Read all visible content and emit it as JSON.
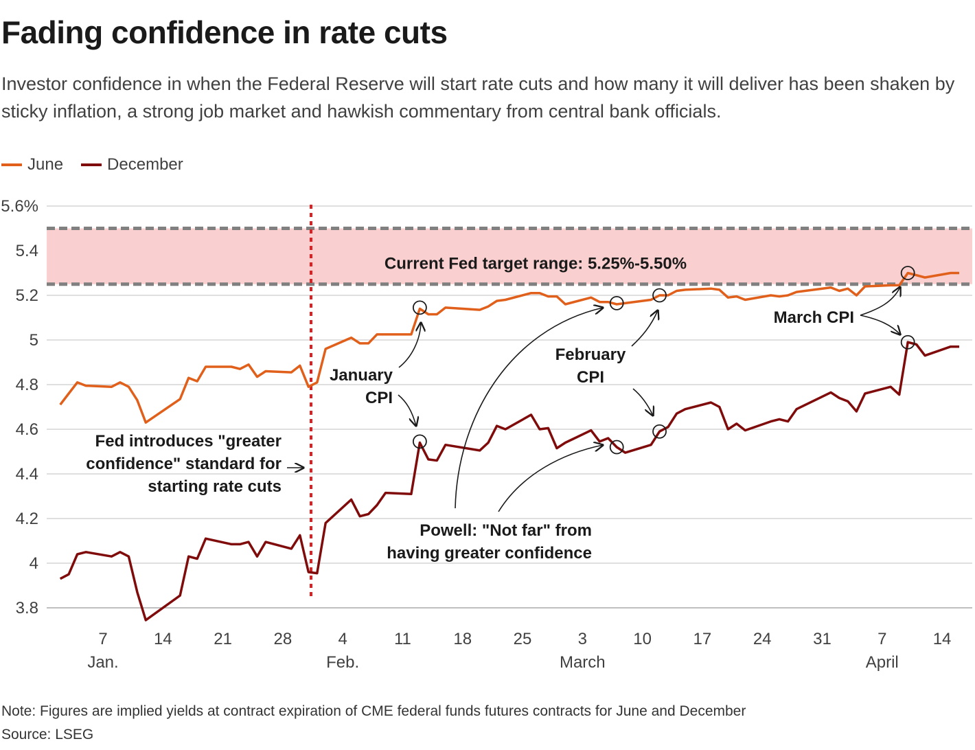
{
  "title": "Fading confidence in rate cuts",
  "subtitle": "Investor confidence in when the Federal Reserve will start rate cuts and how many it will deliver has been shaken by sticky inflation, a strong job market and hawkish commentary from central bank officials.",
  "note": "Note: Figures are implied yields at contract expiration of CME federal funds futures contracts for June and December",
  "source": "Source: LSEG",
  "colors": {
    "june": "#e0601b",
    "december": "#7f0b0b",
    "band": "#f9d0cf",
    "band_edge": "#808080",
    "vline": "#e02020",
    "grid": "#cccccc"
  },
  "chart_data": {
    "type": "line",
    "x_unit": "date 2024",
    "ylim": [
      3.7,
      5.6
    ],
    "yticks": [
      3.8,
      4,
      4.2,
      4.4,
      4.6,
      4.8,
      5,
      5.2,
      5.4,
      5.6
    ],
    "ytick_labels": [
      "3.8",
      "4",
      "4.2",
      "4.4",
      "4.6",
      "4.8",
      "5",
      "5.2",
      "5.4",
      "5.6%"
    ],
    "xticks": [
      {
        "date": "2024-01-07",
        "label": "7",
        "month": "Jan."
      },
      {
        "date": "2024-01-14",
        "label": "14",
        "month": ""
      },
      {
        "date": "2024-01-21",
        "label": "21",
        "month": ""
      },
      {
        "date": "2024-01-28",
        "label": "28",
        "month": ""
      },
      {
        "date": "2024-02-04",
        "label": "4",
        "month": "Feb."
      },
      {
        "date": "2024-02-11",
        "label": "11",
        "month": ""
      },
      {
        "date": "2024-02-18",
        "label": "18",
        "month": ""
      },
      {
        "date": "2024-02-25",
        "label": "25",
        "month": ""
      },
      {
        "date": "2024-03-03",
        "label": "3",
        "month": "March"
      },
      {
        "date": "2024-03-10",
        "label": "10",
        "month": ""
      },
      {
        "date": "2024-03-17",
        "label": "17",
        "month": ""
      },
      {
        "date": "2024-03-24",
        "label": "24",
        "month": ""
      },
      {
        "date": "2024-03-31",
        "label": "31",
        "month": ""
      },
      {
        "date": "2024-04-07",
        "label": "7",
        "month": "April"
      },
      {
        "date": "2024-04-14",
        "label": "14",
        "month": ""
      }
    ],
    "band": {
      "low": 5.25,
      "high": 5.5,
      "label": "Current Fed target range: 5.25%-5.50%"
    },
    "event_line": {
      "date": "2024-01-31"
    },
    "series": [
      {
        "name": "June",
        "points": [
          [
            "2024-01-02",
            4.71
          ],
          [
            "2024-01-03",
            4.76
          ],
          [
            "2024-01-04",
            4.81
          ],
          [
            "2024-01-05",
            4.795
          ],
          [
            "2024-01-08",
            4.79
          ],
          [
            "2024-01-09",
            4.81
          ],
          [
            "2024-01-10",
            4.79
          ],
          [
            "2024-01-11",
            4.73
          ],
          [
            "2024-01-12",
            4.63
          ],
          [
            "2024-01-16",
            4.735
          ],
          [
            "2024-01-17",
            4.83
          ],
          [
            "2024-01-18",
            4.815
          ],
          [
            "2024-01-19",
            4.88
          ],
          [
            "2024-01-22",
            4.88
          ],
          [
            "2024-01-23",
            4.87
          ],
          [
            "2024-01-24",
            4.89
          ],
          [
            "2024-01-25",
            4.835
          ],
          [
            "2024-01-26",
            4.86
          ],
          [
            "2024-01-29",
            4.855
          ],
          [
            "2024-01-30",
            4.885
          ],
          [
            "2024-01-31",
            4.79
          ],
          [
            "2024-02-01",
            4.81
          ],
          [
            "2024-02-02",
            4.96
          ],
          [
            "2024-02-05",
            5.01
          ],
          [
            "2024-02-06",
            4.985
          ],
          [
            "2024-02-07",
            4.985
          ],
          [
            "2024-02-08",
            5.025
          ],
          [
            "2024-02-09",
            5.025
          ],
          [
            "2024-02-12",
            5.025
          ],
          [
            "2024-02-13",
            5.14
          ],
          [
            "2024-02-14",
            5.115
          ],
          [
            "2024-02-15",
            5.115
          ],
          [
            "2024-02-16",
            5.145
          ],
          [
            "2024-02-20",
            5.135
          ],
          [
            "2024-02-21",
            5.15
          ],
          [
            "2024-02-22",
            5.175
          ],
          [
            "2024-02-23",
            5.18
          ],
          [
            "2024-02-26",
            5.21
          ],
          [
            "2024-02-27",
            5.21
          ],
          [
            "2024-02-28",
            5.195
          ],
          [
            "2024-02-29",
            5.195
          ],
          [
            "2024-03-01",
            5.16
          ],
          [
            "2024-03-04",
            5.19
          ],
          [
            "2024-03-05",
            5.17
          ],
          [
            "2024-03-06",
            5.17
          ],
          [
            "2024-03-07",
            5.16
          ],
          [
            "2024-03-08",
            5.165
          ],
          [
            "2024-03-11",
            5.18
          ],
          [
            "2024-03-12",
            5.2
          ],
          [
            "2024-03-13",
            5.2
          ],
          [
            "2024-03-14",
            5.22
          ],
          [
            "2024-03-15",
            5.225
          ],
          [
            "2024-03-18",
            5.23
          ],
          [
            "2024-03-19",
            5.225
          ],
          [
            "2024-03-20",
            5.19
          ],
          [
            "2024-03-21",
            5.195
          ],
          [
            "2024-03-22",
            5.18
          ],
          [
            "2024-03-25",
            5.2
          ],
          [
            "2024-03-26",
            5.195
          ],
          [
            "2024-03-27",
            5.2
          ],
          [
            "2024-03-28",
            5.215
          ],
          [
            "2024-04-01",
            5.235
          ],
          [
            "2024-04-02",
            5.22
          ],
          [
            "2024-04-03",
            5.23
          ],
          [
            "2024-04-04",
            5.2
          ],
          [
            "2024-04-05",
            5.24
          ],
          [
            "2024-04-08",
            5.245
          ],
          [
            "2024-04-09",
            5.245
          ],
          [
            "2024-04-10",
            5.3
          ],
          [
            "2024-04-11",
            5.29
          ],
          [
            "2024-04-12",
            5.28
          ],
          [
            "2024-04-15",
            5.3
          ],
          [
            "2024-04-16",
            5.3
          ]
        ]
      },
      {
        "name": "December",
        "points": [
          [
            "2024-01-02",
            3.93
          ],
          [
            "2024-01-03",
            3.95
          ],
          [
            "2024-01-04",
            4.04
          ],
          [
            "2024-01-05",
            4.05
          ],
          [
            "2024-01-08",
            4.03
          ],
          [
            "2024-01-09",
            4.05
          ],
          [
            "2024-01-10",
            4.03
          ],
          [
            "2024-01-11",
            3.87
          ],
          [
            "2024-01-12",
            3.745
          ],
          [
            "2024-01-16",
            3.855
          ],
          [
            "2024-01-17",
            4.03
          ],
          [
            "2024-01-18",
            4.02
          ],
          [
            "2024-01-19",
            4.11
          ],
          [
            "2024-01-22",
            4.085
          ],
          [
            "2024-01-23",
            4.085
          ],
          [
            "2024-01-24",
            4.095
          ],
          [
            "2024-01-25",
            4.03
          ],
          [
            "2024-01-26",
            4.095
          ],
          [
            "2024-01-29",
            4.065
          ],
          [
            "2024-01-30",
            4.125
          ],
          [
            "2024-01-31",
            3.96
          ],
          [
            "2024-02-01",
            3.955
          ],
          [
            "2024-02-02",
            4.18
          ],
          [
            "2024-02-05",
            4.285
          ],
          [
            "2024-02-06",
            4.21
          ],
          [
            "2024-02-07",
            4.22
          ],
          [
            "2024-02-08",
            4.26
          ],
          [
            "2024-02-09",
            4.315
          ],
          [
            "2024-02-12",
            4.31
          ],
          [
            "2024-02-13",
            4.54
          ],
          [
            "2024-02-14",
            4.465
          ],
          [
            "2024-02-15",
            4.46
          ],
          [
            "2024-02-16",
            4.53
          ],
          [
            "2024-02-20",
            4.505
          ],
          [
            "2024-02-21",
            4.54
          ],
          [
            "2024-02-22",
            4.615
          ],
          [
            "2024-02-23",
            4.6
          ],
          [
            "2024-02-26",
            4.665
          ],
          [
            "2024-02-27",
            4.6
          ],
          [
            "2024-02-28",
            4.605
          ],
          [
            "2024-02-29",
            4.515
          ],
          [
            "2024-03-01",
            4.54
          ],
          [
            "2024-03-04",
            4.595
          ],
          [
            "2024-03-05",
            4.545
          ],
          [
            "2024-03-06",
            4.56
          ],
          [
            "2024-03-07",
            4.52
          ],
          [
            "2024-03-08",
            4.495
          ],
          [
            "2024-03-11",
            4.53
          ],
          [
            "2024-03-12",
            4.59
          ],
          [
            "2024-03-13",
            4.61
          ],
          [
            "2024-03-14",
            4.67
          ],
          [
            "2024-03-15",
            4.69
          ],
          [
            "2024-03-18",
            4.72
          ],
          [
            "2024-03-19",
            4.7
          ],
          [
            "2024-03-20",
            4.6
          ],
          [
            "2024-03-21",
            4.625
          ],
          [
            "2024-03-22",
            4.595
          ],
          [
            "2024-03-25",
            4.635
          ],
          [
            "2024-03-26",
            4.645
          ],
          [
            "2024-03-27",
            4.635
          ],
          [
            "2024-03-28",
            4.69
          ],
          [
            "2024-04-01",
            4.765
          ],
          [
            "2024-04-02",
            4.74
          ],
          [
            "2024-04-03",
            4.725
          ],
          [
            "2024-04-04",
            4.68
          ],
          [
            "2024-04-05",
            4.76
          ],
          [
            "2024-04-08",
            4.79
          ],
          [
            "2024-04-09",
            4.755
          ],
          [
            "2024-04-10",
            4.99
          ],
          [
            "2024-04-11",
            4.98
          ],
          [
            "2024-04-12",
            4.93
          ],
          [
            "2024-04-15",
            4.97
          ],
          [
            "2024-04-16",
            4.97
          ]
        ]
      }
    ],
    "circles": [
      {
        "series": "June",
        "date": "2024-02-13",
        "y": 5.145
      },
      {
        "series": "December",
        "date": "2024-02-13",
        "y": 4.545
      },
      {
        "series": "June",
        "date": "2024-03-07",
        "y": 5.165
      },
      {
        "series": "December",
        "date": "2024-03-07",
        "y": 4.52
      },
      {
        "series": "June",
        "date": "2024-03-12",
        "y": 5.2
      },
      {
        "series": "December",
        "date": "2024-03-12",
        "y": 4.59
      },
      {
        "series": "June",
        "date": "2024-04-10",
        "y": 5.3
      },
      {
        "series": "December",
        "date": "2024-04-10",
        "y": 4.99
      }
    ],
    "annotations": {
      "fed_intro": [
        "Fed introduces \"greater",
        "confidence\" standard for",
        "starting rate cuts"
      ],
      "january_cpi": [
        "January",
        "CPI"
      ],
      "february_cpi": [
        "February",
        "CPI"
      ],
      "march_cpi": [
        "March CPI"
      ],
      "powell": [
        "Powell: \"Not far\" from",
        "having greater confidence"
      ]
    }
  }
}
